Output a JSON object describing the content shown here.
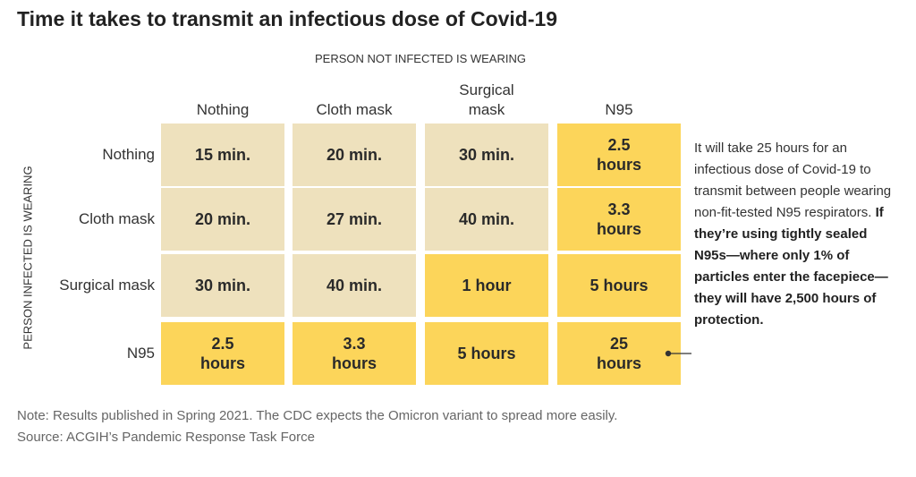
{
  "title": "Time it takes to transmit an infectious dose of Covid-19",
  "colors": {
    "low_risk": "#EEE1BD",
    "high_protection": "#FCD55A"
  },
  "chart_data": {
    "type": "table",
    "column_group_label": "PERSON NOT INFECTED IS WEARING",
    "row_group_label": "PERSON INFECTED IS WEARING",
    "columns": [
      "Nothing",
      "Cloth mask",
      "Surgical mask",
      "N95"
    ],
    "rows": [
      "Nothing",
      "Cloth mask",
      "Surgical mask",
      "N95"
    ],
    "cells": [
      [
        {
          "text": "15 min.",
          "hours": 0.25,
          "highlight": false
        },
        {
          "text": "20 min.",
          "hours": 0.333,
          "highlight": false
        },
        {
          "text": "30 min.",
          "hours": 0.5,
          "highlight": false
        },
        {
          "text": "2.5 hours",
          "hours": 2.5,
          "highlight": true
        }
      ],
      [
        {
          "text": "20 min.",
          "hours": 0.333,
          "highlight": false
        },
        {
          "text": "27 min.",
          "hours": 0.45,
          "highlight": false
        },
        {
          "text": "40 min.",
          "hours": 0.667,
          "highlight": false
        },
        {
          "text": "3.3 hours",
          "hours": 3.3,
          "highlight": true
        }
      ],
      [
        {
          "text": "30 min.",
          "hours": 0.5,
          "highlight": false
        },
        {
          "text": "40 min.",
          "hours": 0.667,
          "highlight": false
        },
        {
          "text": "1 hour",
          "hours": 1,
          "highlight": true
        },
        {
          "text": "5 hours",
          "hours": 5,
          "highlight": true
        }
      ],
      [
        {
          "text": "2.5 hours",
          "hours": 2.5,
          "highlight": true
        },
        {
          "text": "3.3 hours",
          "hours": 3.3,
          "highlight": true
        },
        {
          "text": "5 hours",
          "hours": 5,
          "highlight": true
        },
        {
          "text": "25 hours",
          "hours": 25,
          "highlight": true
        }
      ]
    ],
    "annotation": {
      "row": 3,
      "column": 3,
      "text": "It will take 25 hours for an infectious dose of Covid-19 to transmit between people wearing non-fit-tested N95 respirators.",
      "bold_text": "If they’re using tightly sealed N95s—where only 1% of particles enter the facepiece—they will have 2,500 hours of protection."
    }
  },
  "footnote": {
    "note": "Note: Results published in Spring 2021. The CDC expects the Omicron variant to spread more easily.",
    "source": "Source: ACGIH’s Pandemic Response Task Force"
  }
}
